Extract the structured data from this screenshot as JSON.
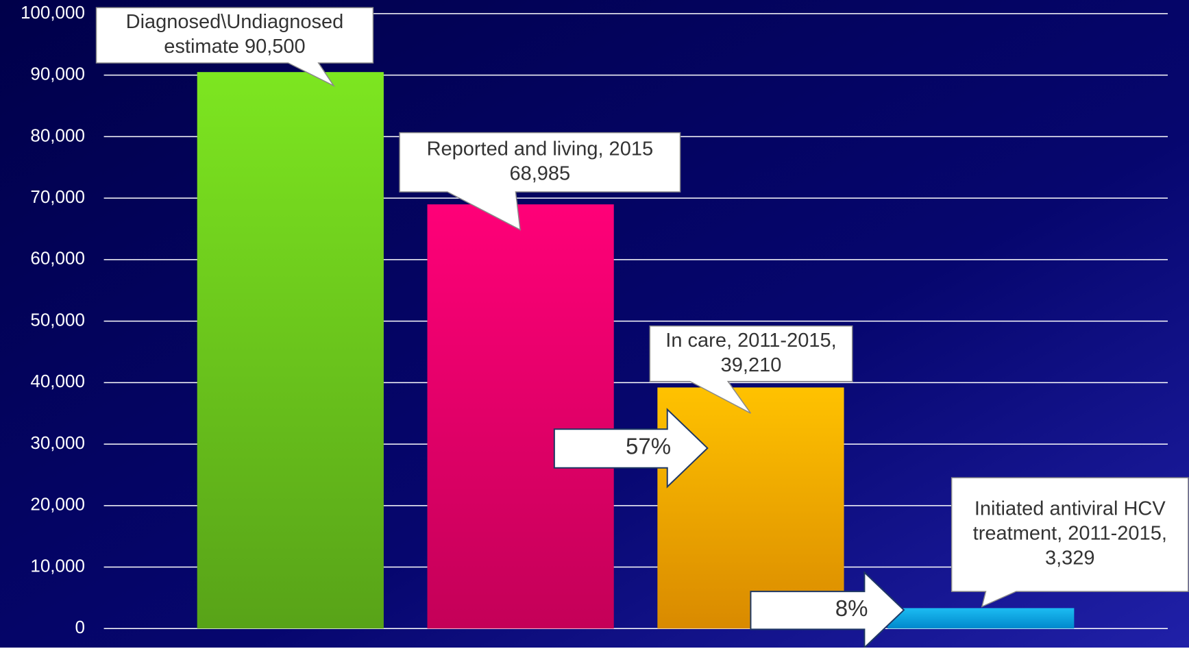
{
  "chart_data": {
    "type": "bar",
    "values": [
      90500,
      68985,
      39210,
      3329
    ],
    "colors": [
      [
        "#7de620",
        "#58a318"
      ],
      [
        "#ff0078",
        "#c40058"
      ],
      [
        "#ffc200",
        "#d98a00"
      ],
      [
        "#1cbcf2",
        "#0088cc"
      ]
    ],
    "callouts": [
      [
        "Diagnosed\\Undiagnosed",
        "estimate 90,500"
      ],
      [
        "Reported and living, 2015",
        "68,985"
      ],
      [
        "In care, 2011-2015,",
        "39,210"
      ],
      [
        "Initiated antiviral HCV",
        "treatment, 2011-2015,",
        "3,329"
      ]
    ],
    "annotations": [
      "57%",
      "8%"
    ],
    "ylim": [
      0,
      100000
    ],
    "yticks": [
      0,
      {
        "value": 10000,
        "label": "10,000"
      },
      {
        "value": 20000,
        "label": "20,000"
      },
      {
        "value": 30000,
        "label": "30,000"
      },
      {
        "value": 40000,
        "label": "40,000"
      },
      {
        "value": 50000,
        "label": "50,000"
      },
      {
        "value": 60000,
        "label": "60,000"
      },
      {
        "value": 70000,
        "label": "70,000"
      },
      {
        "value": 80000,
        "label": "80,000"
      },
      {
        "value": 90000,
        "label": "90,000"
      },
      {
        "value": 100000,
        "label": "100,000"
      }
    ],
    "grid": true
  }
}
